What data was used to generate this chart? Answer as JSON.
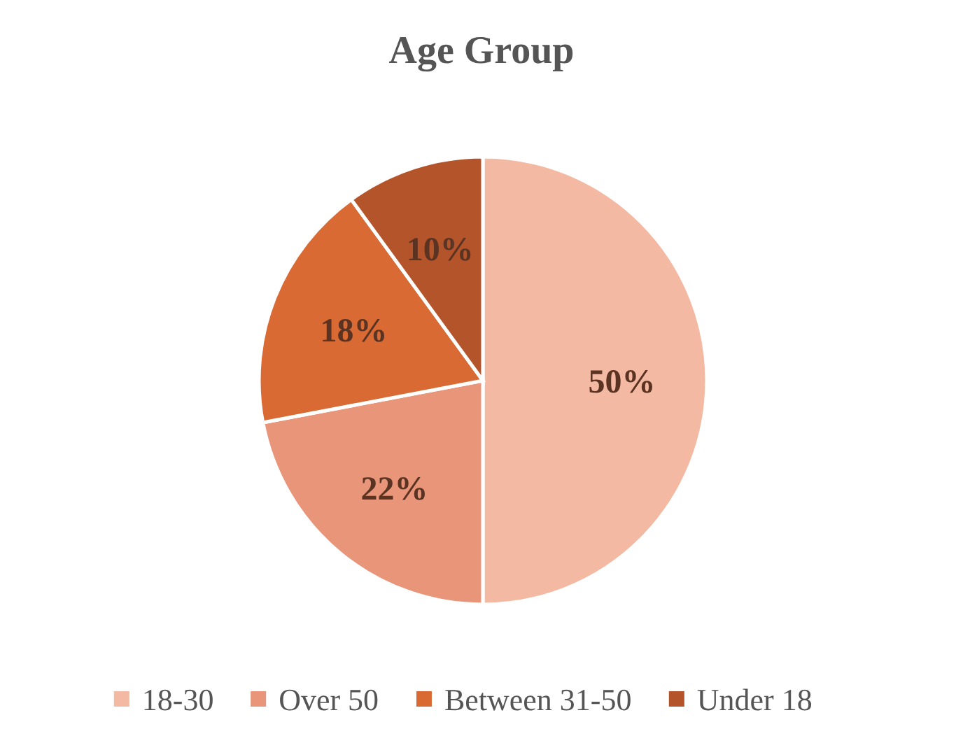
{
  "chart_data": {
    "type": "pie",
    "title": "Age Group",
    "categories": [
      "18-30",
      "Over 50",
      "Between 31-50",
      "Under 18"
    ],
    "values": [
      50,
      22,
      18,
      10
    ],
    "colors": [
      "#f4b9a3",
      "#e8957a",
      "#d96a33",
      "#b4542b"
    ],
    "value_labels": [
      "50%",
      "22%",
      "18%",
      "10%"
    ],
    "legend": "bottom"
  }
}
